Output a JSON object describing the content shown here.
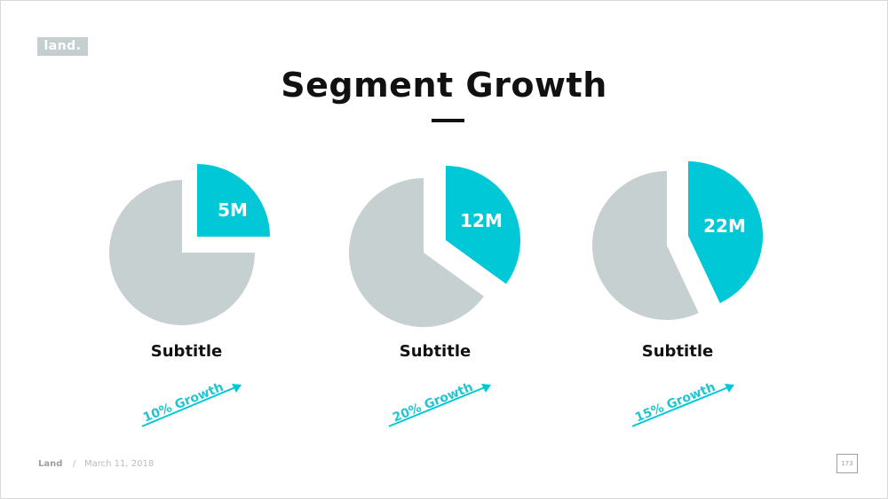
{
  "logo": "land.",
  "title": "Segment Growth",
  "colors": {
    "accent": "#00c8d7",
    "muted": "#c6d0d1",
    "text": "#111111"
  },
  "chart_data": [
    {
      "type": "pie",
      "slices": [
        {
          "label": "5M",
          "fraction": 0.25,
          "highlight": true
        },
        {
          "label": "",
          "fraction": 0.75,
          "highlight": false
        }
      ],
      "subtitle": "Subtitle",
      "growth": "10% Growth"
    },
    {
      "type": "pie",
      "slices": [
        {
          "label": "12M",
          "fraction": 0.35,
          "highlight": true
        },
        {
          "label": "",
          "fraction": 0.65,
          "highlight": false
        }
      ],
      "subtitle": "Subtitle",
      "growth": "20% Growth"
    },
    {
      "type": "pie",
      "slices": [
        {
          "label": "22M",
          "fraction": 0.43,
          "highlight": true
        },
        {
          "label": "",
          "fraction": 0.57,
          "highlight": false
        }
      ],
      "subtitle": "Subtitle",
      "growth": "15% Growth"
    }
  ],
  "footer": {
    "brand": "Land",
    "separator": "/",
    "date": "March 11, 2018",
    "page": "173"
  }
}
